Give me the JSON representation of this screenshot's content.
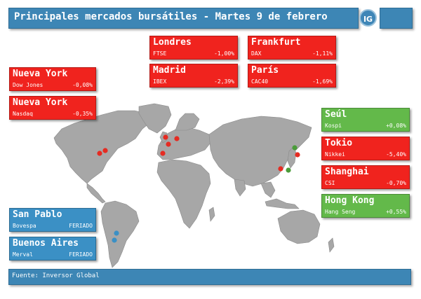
{
  "header": {
    "title": "Principales mercados bursátiles - Martes 9 de febrero"
  },
  "logo": {
    "text": "IG"
  },
  "colors": {
    "down": "#f0231e",
    "up": "#63b94a",
    "closed": "#3b90c5",
    "brand": "#3d86b5"
  },
  "markets": {
    "londres": {
      "name": "Londres",
      "index": "FTSE",
      "change": "-1,00%"
    },
    "frankfurt": {
      "name": "Frankfurt",
      "index": "DAX",
      "change": "-1,11%"
    },
    "madrid": {
      "name": "Madrid",
      "index": "IBEX",
      "change": "-2,39%"
    },
    "paris": {
      "name": "París",
      "index": "CAC40",
      "change": "-1,69%"
    },
    "ny_dow": {
      "name": "Nueva York",
      "index": "Dow Jones",
      "change": "-0,08%"
    },
    "ny_nasdaq": {
      "name": "Nueva York",
      "index": "Nasdaq",
      "change": "-0,35%"
    },
    "seul": {
      "name": "Seúl",
      "index": "Kospi",
      "change": "+0,08%"
    },
    "tokio": {
      "name": "Tokio",
      "index": "Nikkei",
      "change": "-5,40%"
    },
    "shanghai": {
      "name": "Shanghai",
      "index": "CSI",
      "change": "-0,70%"
    },
    "hongkong": {
      "name": "Hong Kong",
      "index": "Hang Seng",
      "change": "+0,55%"
    },
    "sanpablo": {
      "name": "San Pablo",
      "index": "Bovespa",
      "change": "FERIADO"
    },
    "buenosaires": {
      "name": "Buenos Aires",
      "index": "Merval",
      "change": "FERIADO"
    }
  },
  "footer": {
    "source": "Fuente: Inversor Global"
  }
}
